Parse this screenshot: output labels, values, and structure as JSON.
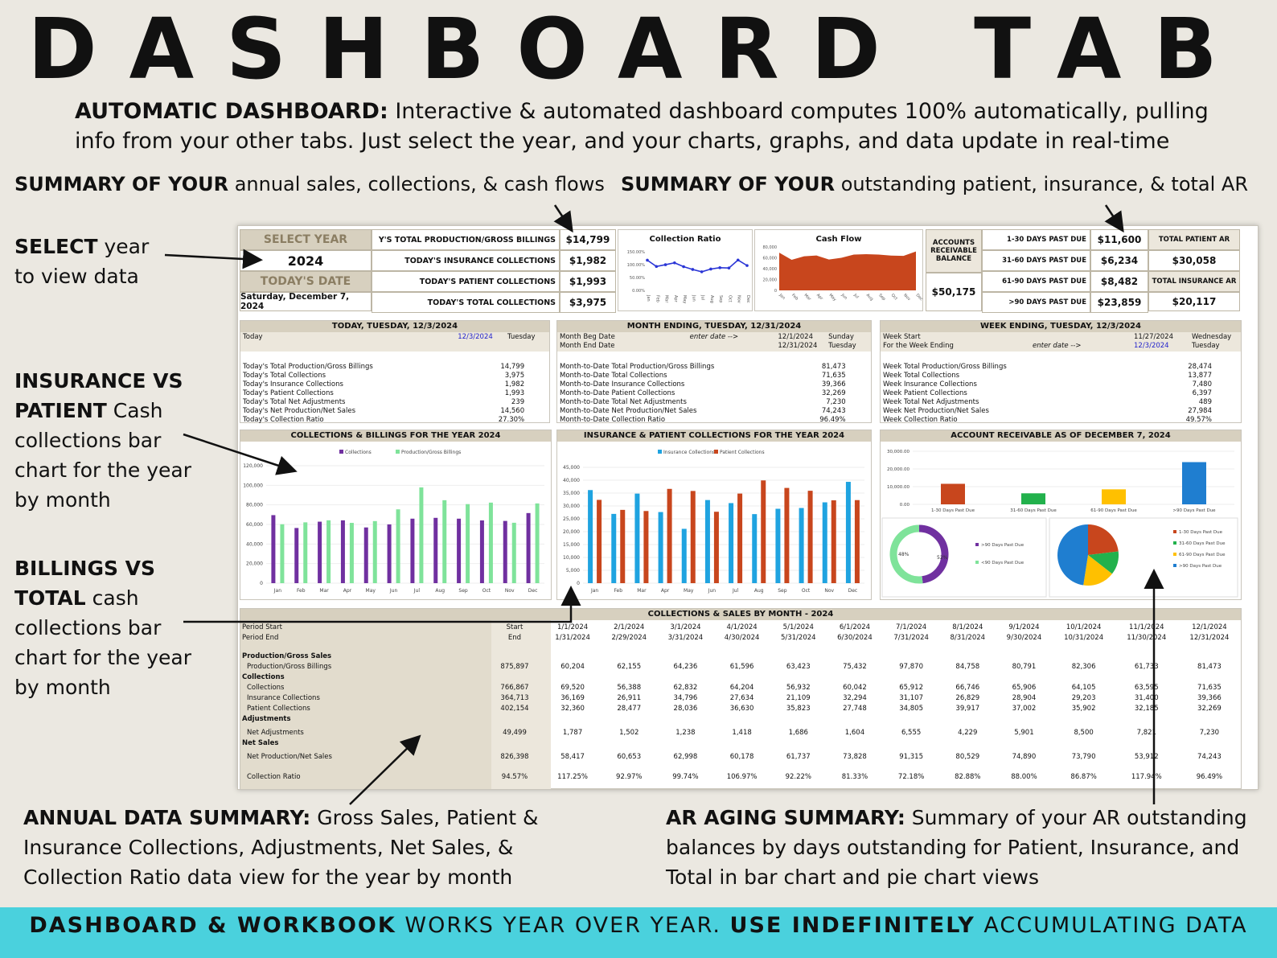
{
  "title": "DASHBOARD TAB",
  "intro": {
    "bold": "AUTOMATIC DASHBOARD:",
    "text": " Interactive & automated dashboard computes 100% automatically, pulling info from your other tabs. Just select the year, and your charts, graphs, and data update in real-time"
  },
  "annotations": {
    "summary_left_bold": "SUMMARY OF YOUR",
    "summary_left_text": " annual sales, collections, & cash flows",
    "summary_right_bold": "SUMMARY OF YOUR",
    "summary_right_text": " outstanding patient, insurance, & total AR",
    "select_bold": "SELECT",
    "select_text": " year",
    "select_text2": "to view data",
    "ins_bold1": "INSURANCE VS",
    "ins_bold2": "PATIENT",
    "ins_text": " Cash collections bar chart for the year by month",
    "bill_bold1": "BILLINGS VS",
    "bill_bold2": "TOTAL",
    "bill_text": " cash collections bar chart for the year by month",
    "annual_bold": "ANNUAL DATA SUMMARY:",
    "annual_text": " Gross Sales, Patient & Insurance Collections, Adjustments, Net Sales, & Collection Ratio data view for the year by month",
    "ar_bold": "AR AGING SUMMARY:",
    "ar_text": " Summary of your AR outstanding balances by days outstanding for Patient, Insurance, and Total in bar chart and pie chart views"
  },
  "footer": {
    "b1": "DASHBOARD & WORKBOOK",
    "t1": " WORKS YEAR OVER YEAR. ",
    "b2": "USE INDEFINITELY",
    "t2": " ACCUMULATING DATA"
  },
  "dashboard": {
    "select_year_label": "SELECT YEAR",
    "year": "2024",
    "todays_date_label": "TODAY'S DATE",
    "todays_date": "Saturday, December 7, 2024",
    "kpis": [
      {
        "label": "Y'S TOTAL PRODUCTION/GROSS BILLINGS",
        "value": "$14,799"
      },
      {
        "label": "TODAY'S INSURANCE COLLECTIONS",
        "value": "$1,982"
      },
      {
        "label": "TODAY'S PATIENT COLLECTIONS",
        "value": "$1,993"
      },
      {
        "label": "TODAY'S TOTAL COLLECTIONS",
        "value": "$3,975"
      }
    ],
    "collection_ratio_title": "Collection Ratio",
    "cash_flow_title": "Cash Flow",
    "ar_balance_label": "ACCOUNTS RECEIVABLE BALANCE",
    "ar_balance_value": "$50,175",
    "ar_rows": [
      {
        "label": "1-30 DAYS PAST DUE",
        "value": "$11,600"
      },
      {
        "label": "31-60 DAYS PAST DUE",
        "value": "$6,234"
      },
      {
        "label": "61-90 DAYS PAST DUE",
        "value": "$8,482"
      },
      {
        "label": ">90 DAYS PAST DUE",
        "value": "$23,859"
      }
    ],
    "total_patient_ar_label": "TOTAL PATIENT AR",
    "total_patient_ar": "$30,058",
    "total_insurance_ar_label": "TOTAL INSURANCE AR",
    "total_insurance_ar": "$20,117",
    "today_panel": {
      "title": "TODAY, TUESDAY, 12/3/2024",
      "head_left": "Today",
      "head_date": "12/3/2024",
      "head_day": "Tuesday",
      "rows": [
        [
          "Today's Total Production/Gross Billings",
          "14,799"
        ],
        [
          "Today's Total Collections",
          "3,975"
        ],
        [
          "Today's Insurance Collections",
          "1,982"
        ],
        [
          "Today's Patient Collections",
          "1,993"
        ],
        [
          "Today's Total Net Adjustments",
          "239"
        ],
        [
          "Today's Net Production/Net Sales",
          "14,560"
        ],
        [
          "Today's Collection Ratio",
          "27.30%"
        ]
      ]
    },
    "month_panel": {
      "title": "MONTH ENDING, TUESDAY, 12/31/2024",
      "head1": [
        "Month Beg Date",
        "enter date -->",
        "12/1/2024",
        "Sunday"
      ],
      "head2": [
        "Month End Date",
        "",
        "12/31/2024",
        "Tuesday"
      ],
      "rows": [
        [
          "Month-to-Date Total Production/Gross Billings",
          "81,473"
        ],
        [
          "Month-to-Date Total Collections",
          "71,635"
        ],
        [
          "Month-to-Date Insurance Collections",
          "39,366"
        ],
        [
          "Month-to-Date Patient Collections",
          "32,269"
        ],
        [
          "Month-to-Date Total Net Adjustments",
          "7,230"
        ],
        [
          "Month-to-Date Net Production/Net Sales",
          "74,243"
        ],
        [
          "Month-to-Date Collection Ratio",
          "96.49%"
        ]
      ]
    },
    "week_panel": {
      "title": "WEEK ENDING, TUESDAY, 12/3/2024",
      "head1": [
        "Week Start",
        "",
        "11/27/2024",
        "Wednesday"
      ],
      "head2": [
        "For the Week Ending",
        "enter date -->",
        "12/3/2024",
        "Tuesday"
      ],
      "rows": [
        [
          "Week Total Production/Gross Billings",
          "28,474"
        ],
        [
          "Week Total Collections",
          "13,877"
        ],
        [
          "Week Insurance Collections",
          "7,480"
        ],
        [
          "Week Patient Collections",
          "6,397"
        ],
        [
          "Week Total Net Adjustments",
          "489"
        ],
        [
          "Week Net Production/Net Sales",
          "27,984"
        ],
        [
          "Week Collection Ratio",
          "49.57%"
        ]
      ]
    },
    "chart1_title": "COLLECTIONS & BILLINGS FOR THE YEAR 2024",
    "chart2_title": "INSURANCE & PATIENT COLLECTIONS FOR THE YEAR 2024",
    "chart3_title": "ACCOUNT RECEIVABLE AS OF DECEMBER 7, 2024",
    "table_title": "COLLECTIONS & SALES BY MONTH - 2024",
    "table": {
      "period_start_label": "Period Start",
      "period_end_label": "Period End",
      "start_label": "Start",
      "end_label": "End",
      "starts": [
        "1/1/2024",
        "2/1/2024",
        "3/1/2024",
        "4/1/2024",
        "5/1/2024",
        "6/1/2024",
        "7/1/2024",
        "8/1/2024",
        "9/1/2024",
        "10/1/2024",
        "11/1/2024",
        "12/1/2024"
      ],
      "ends": [
        "1/31/2024",
        "2/29/2024",
        "3/31/2024",
        "4/30/2024",
        "5/31/2024",
        "6/30/2024",
        "7/31/2024",
        "8/31/2024",
        "9/30/2024",
        "10/31/2024",
        "11/30/2024",
        "12/31/2024"
      ],
      "rows": [
        {
          "label": "Production/Gross Sales",
          "type": "section",
          "total": "",
          "values": []
        },
        {
          "label": "Production/Gross Billings",
          "type": "row",
          "total": "875,897",
          "values": [
            "60,204",
            "62,155",
            "64,236",
            "61,596",
            "63,423",
            "75,432",
            "97,870",
            "84,758",
            "80,791",
            "82,306",
            "61,733",
            "81,473"
          ]
        },
        {
          "label": "Collections",
          "type": "section",
          "total": "",
          "values": []
        },
        {
          "label": "Collections",
          "type": "row",
          "total": "766,867",
          "values": [
            "69,520",
            "56,388",
            "62,832",
            "64,204",
            "56,932",
            "60,042",
            "65,912",
            "66,746",
            "65,906",
            "64,105",
            "63,595",
            "71,635"
          ]
        },
        {
          "label": "Insurance Collections",
          "type": "row",
          "total": "364,713",
          "values": [
            "36,169",
            "26,911",
            "34,796",
            "27,634",
            "21,109",
            "32,294",
            "31,107",
            "26,829",
            "28,904",
            "29,203",
            "31,400",
            "39,366"
          ]
        },
        {
          "label": "Patient Collections",
          "type": "row",
          "total": "402,154",
          "values": [
            "32,360",
            "28,477",
            "28,036",
            "36,630",
            "35,823",
            "27,748",
            "34,805",
            "39,917",
            "37,002",
            "35,902",
            "32,185",
            "32,269"
          ]
        },
        {
          "label": "Adjustments",
          "type": "section",
          "total": "",
          "values": []
        },
        {
          "label": "Net Adjustments",
          "type": "row",
          "total": "49,499",
          "values": [
            "1,787",
            "1,502",
            "1,238",
            "1,418",
            "1,686",
            "1,604",
            "6,555",
            "4,229",
            "5,901",
            "8,500",
            "7,821",
            "7,230"
          ]
        },
        {
          "label": "Net Sales",
          "type": "section",
          "total": "",
          "values": []
        },
        {
          "label": "Net Production/Net Sales",
          "type": "row",
          "total": "826,398",
          "values": [
            "58,417",
            "60,653",
            "62,998",
            "60,178",
            "61,737",
            "73,828",
            "91,315",
            "80,529",
            "74,890",
            "73,790",
            "53,912",
            "74,243"
          ]
        },
        {
          "label": "Collection Ratio",
          "type": "row",
          "total": "94.57%",
          "values": [
            "117.25%",
            "92.97%",
            "99.74%",
            "106.97%",
            "92.22%",
            "81.33%",
            "72.18%",
            "82.88%",
            "88.00%",
            "86.87%",
            "117.94%",
            "96.49%"
          ]
        }
      ]
    }
  },
  "chart_data": [
    {
      "type": "bar",
      "title": "COLLECTIONS & BILLINGS FOR THE YEAR 2024",
      "categories": [
        "Jan",
        "Feb",
        "Mar",
        "Apr",
        "May",
        "Jun",
        "Jul",
        "Aug",
        "Sep",
        "Oct",
        "Nov",
        "Dec"
      ],
      "series": [
        {
          "name": "Collections",
          "color": "#7030a0",
          "values": [
            69520,
            56388,
            62832,
            64204,
            56932,
            60042,
            65912,
            66746,
            65906,
            64105,
            63595,
            71635
          ]
        },
        {
          "name": "Production/Gross Billings",
          "color": "#7fe39a",
          "values": [
            60204,
            62155,
            64236,
            61596,
            63423,
            75432,
            97870,
            84758,
            80791,
            82306,
            61733,
            81473
          ]
        }
      ],
      "yticks": [
        "120,000",
        "100,000",
        "80,000",
        "60,000",
        "40,000",
        "20,000",
        "0"
      ],
      "ylim": [
        0,
        120000
      ]
    },
    {
      "type": "bar",
      "title": "INSURANCE & PATIENT COLLECTIONS FOR THE YEAR 2024",
      "categories": [
        "Jan",
        "Feb",
        "Mar",
        "Apr",
        "May",
        "Jun",
        "Jul",
        "Aug",
        "Sep",
        "Oct",
        "Nov",
        "Dec"
      ],
      "series": [
        {
          "name": "Insurance Collections",
          "color": "#1fa3e0",
          "values": [
            36169,
            26911,
            34796,
            27634,
            21109,
            32294,
            31107,
            26829,
            28904,
            29203,
            31400,
            39366
          ]
        },
        {
          "name": "Patient Collections",
          "color": "#c8461d",
          "values": [
            32360,
            28477,
            28036,
            36630,
            35823,
            27748,
            34805,
            39917,
            37002,
            35902,
            32185,
            32269
          ]
        }
      ],
      "yticks": [
        "45,000",
        "40,000",
        "35,000",
        "30,000",
        "25,000",
        "20,000",
        "15,000",
        "10,000",
        "5,000",
        "0"
      ],
      "ylim": [
        0,
        45000
      ]
    },
    {
      "type": "bar",
      "title": "ACCOUNT RECEIVABLE AS OF DECEMBER 7, 2024",
      "categories": [
        "1-30 Days Past Due",
        "31-60 Days Past Due",
        "61-90 Days Past Due",
        ">90 Days Past Due"
      ],
      "values": [
        11600,
        6234,
        8482,
        23859
      ],
      "colors": [
        "#c8461d",
        "#22b14c",
        "#ffc000",
        "#1f7ed0"
      ],
      "yticks": [
        "30,000.00",
        "20,000.00",
        "10,000.00",
        "0.00"
      ],
      "ylim": [
        0,
        30000
      ]
    },
    {
      "type": "pie",
      "title": "",
      "labels": [
        ">90 Days Past Due",
        "<90 Days Past Due"
      ],
      "values": [
        48,
        52
      ],
      "slice_labels": [
        "48%",
        "52%"
      ],
      "colors": [
        "#7030a0",
        "#7fe39a"
      ]
    },
    {
      "type": "pie",
      "title": "",
      "labels": [
        "1-30 Days Past Due",
        "31-60 Days Past Due",
        "61-90 Days Past Due",
        ">90 Days Past Due"
      ],
      "values": [
        11600,
        6234,
        8482,
        23859
      ],
      "colors": [
        "#c8461d",
        "#22b14c",
        "#ffc000",
        "#1f7ed0"
      ]
    },
    {
      "type": "line",
      "title": "Collection Ratio",
      "categories": [
        "Jan",
        "Feb",
        "Mar",
        "Apr",
        "May",
        "Jun",
        "Jul",
        "Aug",
        "Sep",
        "Oct",
        "Nov",
        "Dec"
      ],
      "values": [
        117.25,
        92.97,
        99.74,
        106.97,
        92.22,
        81.33,
        72.18,
        82.88,
        88.0,
        86.87,
        117.94,
        96.49
      ],
      "yticks": [
        "150.00%",
        "100.00%",
        "50.00%",
        "0.00%"
      ],
      "ylim": [
        0,
        150
      ],
      "color": "#2a35d6"
    },
    {
      "type": "area",
      "title": "Cash Flow",
      "categories": [
        "Jan",
        "Feb",
        "Mar",
        "Apr",
        "May",
        "Jun",
        "Jul",
        "Aug",
        "Sep",
        "Oct",
        "Nov",
        "Dec"
      ],
      "values": [
        69520,
        56388,
        62832,
        64204,
        56932,
        60042,
        65912,
        66746,
        65906,
        64105,
        63595,
        71635
      ],
      "yticks": [
        "80,000",
        "60,000",
        "40,000",
        "20,000",
        "0"
      ],
      "ylim": [
        0,
        80000
      ],
      "color": "#c8461d"
    }
  ]
}
